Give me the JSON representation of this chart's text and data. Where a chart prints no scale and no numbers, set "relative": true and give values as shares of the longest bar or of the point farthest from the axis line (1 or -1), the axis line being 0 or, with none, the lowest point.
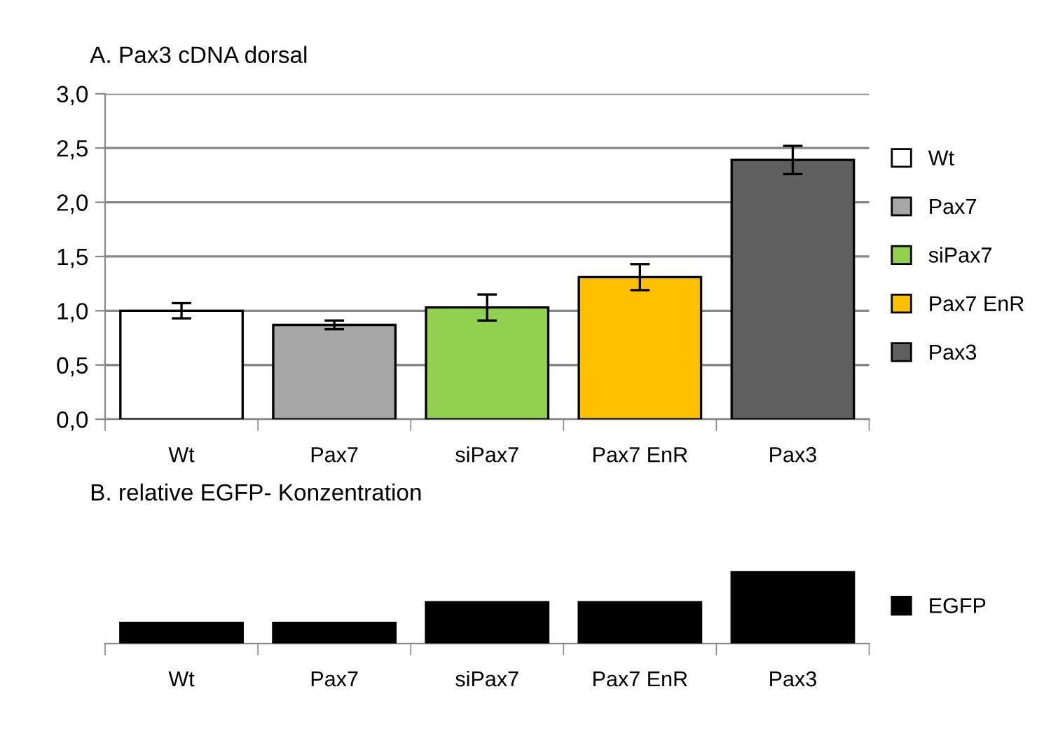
{
  "chart_data": [
    {
      "type": "bar",
      "title": "A. Pax3 cDNA dorsal",
      "categories": [
        "Wt",
        "Pax7",
        "siPax7",
        "Pax7 EnR",
        "Pax3"
      ],
      "stacked": true,
      "series": [
        {
          "name": "Wt",
          "color": "#ffffff",
          "values": [
            1.0,
            null,
            null,
            null,
            null
          ],
          "errors": [
            0.07,
            null,
            null,
            null,
            null
          ]
        },
        {
          "name": "Pax7",
          "color": "#a6a6a6",
          "values": [
            null,
            0.87,
            null,
            null,
            null
          ],
          "errors": [
            null,
            0.04,
            null,
            null,
            null
          ]
        },
        {
          "name": "siPax7",
          "color": "#92d050",
          "values": [
            null,
            null,
            1.03,
            null,
            null
          ],
          "errors": [
            null,
            null,
            0.12,
            null,
            null
          ]
        },
        {
          "name": "Pax7 EnR",
          "color": "#ffc000",
          "values": [
            null,
            null,
            null,
            1.31,
            null
          ],
          "errors": [
            null,
            null,
            null,
            0.12,
            null
          ]
        },
        {
          "name": "Pax3",
          "color": "#5f5f5f",
          "values": [
            null,
            null,
            null,
            null,
            2.39
          ],
          "errors": [
            null,
            null,
            null,
            null,
            0.13
          ]
        }
      ],
      "ylim": [
        0,
        3.0
      ],
      "yticks": [
        {
          "value": 0,
          "label": "0,0"
        },
        {
          "value": 0.5,
          "label": "0,5"
        },
        {
          "value": 1.0,
          "label": "1,0"
        },
        {
          "value": 1.5,
          "label": "1,5"
        },
        {
          "value": 2.0,
          "label": "2,0"
        },
        {
          "value": 2.5,
          "label": "2,5"
        },
        {
          "value": 3.0,
          "label": "3,0"
        }
      ],
      "grid": "y",
      "legend": "right"
    },
    {
      "type": "bar",
      "title": "B. relative EGFP- Konzentration",
      "categories": [
        "Wt",
        "Pax7",
        "siPax7",
        "Pax7 EnR",
        "Pax3"
      ],
      "relative": true,
      "series": [
        {
          "name": "EGFP",
          "color": "#000000",
          "values": [
            0.29,
            0.29,
            0.58,
            0.58,
            1.0
          ]
        }
      ],
      "legend": "right"
    }
  ]
}
